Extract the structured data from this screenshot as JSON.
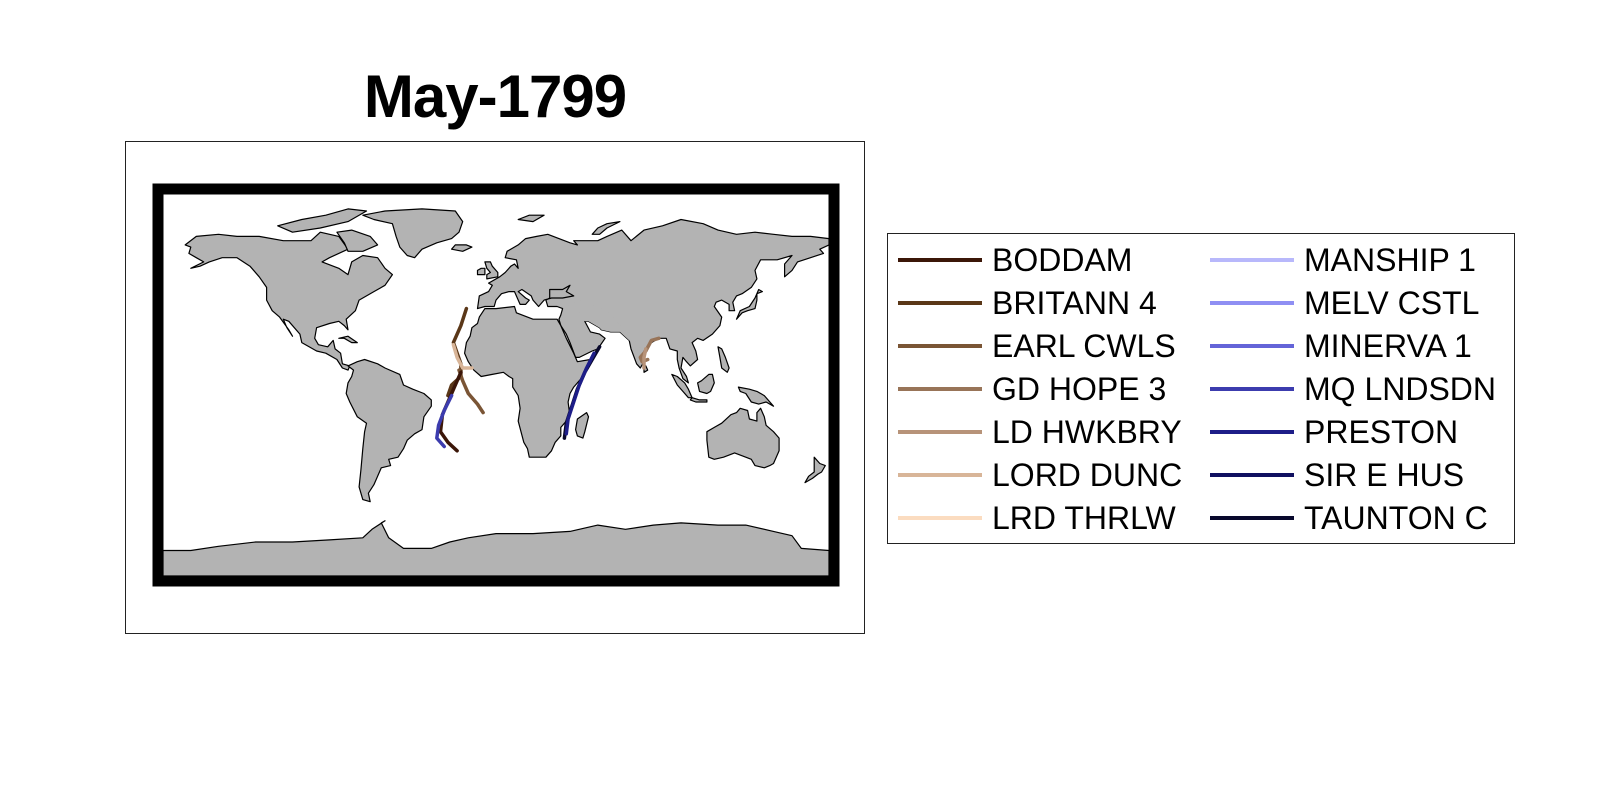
{
  "title": "May-1799",
  "map": {
    "land_color": "#b3b3b3",
    "coast_color": "#000000",
    "frame_color": "#000000",
    "projection": "equirectangular (world, Atlantic-centred)"
  },
  "legend": {
    "columns": 2,
    "entries": [
      {
        "name": "BODDAM",
        "color": "#3b1608"
      },
      {
        "name": "BRITANN 4",
        "color": "#5a3718"
      },
      {
        "name": "EARL CWLS",
        "color": "#7a5535"
      },
      {
        "name": "GD HOPE 3",
        "color": "#987458"
      },
      {
        "name": "LD HWKBRY",
        "color": "#b79379"
      },
      {
        "name": "LORD DUNC",
        "color": "#d8b598"
      },
      {
        "name": "LRD THRLW",
        "color": "#fbdcc0"
      },
      {
        "name": "MANSHIP 1",
        "color": "#b8b8fb"
      },
      {
        "name": "MELV CSTL",
        "color": "#8f8ff3"
      },
      {
        "name": "MINERVA 1",
        "color": "#6464d8"
      },
      {
        "name": "MQ LNDSDN",
        "color": "#3c3cae"
      },
      {
        "name": "PRESTON",
        "color": "#1d1d88"
      },
      {
        "name": "SIR E HUS",
        "color": "#101060"
      },
      {
        "name": "TAUNTON C",
        "color": "#08082c"
      }
    ]
  },
  "tracks": [
    {
      "name": "BRITANN 4",
      "color": "#5a3718",
      "points": [
        [
          -16,
          36
        ],
        [
          -19,
          28
        ],
        [
          -23,
          20
        ],
        [
          -19,
          10
        ],
        [
          -19,
          4
        ],
        [
          -24,
          0
        ],
        [
          -26,
          -5
        ]
      ]
    },
    {
      "name": "EARL CWLS",
      "color": "#7a5535",
      "points": [
        [
          -20,
          7
        ],
        [
          -18,
          2
        ],
        [
          -15,
          -4
        ],
        [
          -10,
          -9
        ],
        [
          -7,
          -13
        ]
      ]
    },
    {
      "name": "LORD DUNC",
      "color": "#d8b598",
      "points": [
        [
          -23,
          19
        ],
        [
          -21,
          13
        ],
        [
          -18,
          8
        ],
        [
          -13,
          8
        ]
      ]
    },
    {
      "name": "BODDAM",
      "color": "#3b1608",
      "points": [
        [
          -19,
          6
        ],
        [
          -22,
          0
        ],
        [
          -25,
          -6
        ],
        [
          -29,
          -14
        ],
        [
          -30,
          -22
        ],
        [
          -26,
          -27
        ],
        [
          -21,
          -31
        ]
      ]
    },
    {
      "name": "MQ LNDSDN",
      "color": "#3c3cae",
      "points": [
        [
          -24,
          -5
        ],
        [
          -28,
          -12
        ],
        [
          -31,
          -19
        ],
        [
          -32,
          -25
        ],
        [
          -28,
          -29
        ]
      ]
    },
    {
      "name": "TAUNTON C",
      "color": "#08082c",
      "points": [
        [
          56,
          18
        ],
        [
          52,
          12
        ],
        [
          48,
          6
        ],
        [
          44,
          -2
        ],
        [
          41,
          -10
        ],
        [
          38,
          -18
        ],
        [
          37,
          -25
        ]
      ]
    },
    {
      "name": "PRESTON",
      "color": "#1d1d88",
      "points": [
        [
          53,
          15
        ],
        [
          49,
          8
        ],
        [
          45,
          0
        ],
        [
          42,
          -8
        ],
        [
          39,
          -16
        ],
        [
          38,
          -23
        ]
      ]
    },
    {
      "name": "GD HOPE 3",
      "color": "#987458",
      "points": [
        [
          82,
          12
        ],
        [
          79,
          11
        ],
        [
          78,
          13
        ],
        [
          81,
          16
        ],
        [
          84,
          21
        ],
        [
          88,
          22
        ]
      ]
    },
    {
      "name": "LD HWKBRY",
      "color": "#b79379",
      "points": [
        [
          80,
          8
        ],
        [
          80,
          13
        ],
        [
          81,
          17
        ]
      ]
    }
  ]
}
